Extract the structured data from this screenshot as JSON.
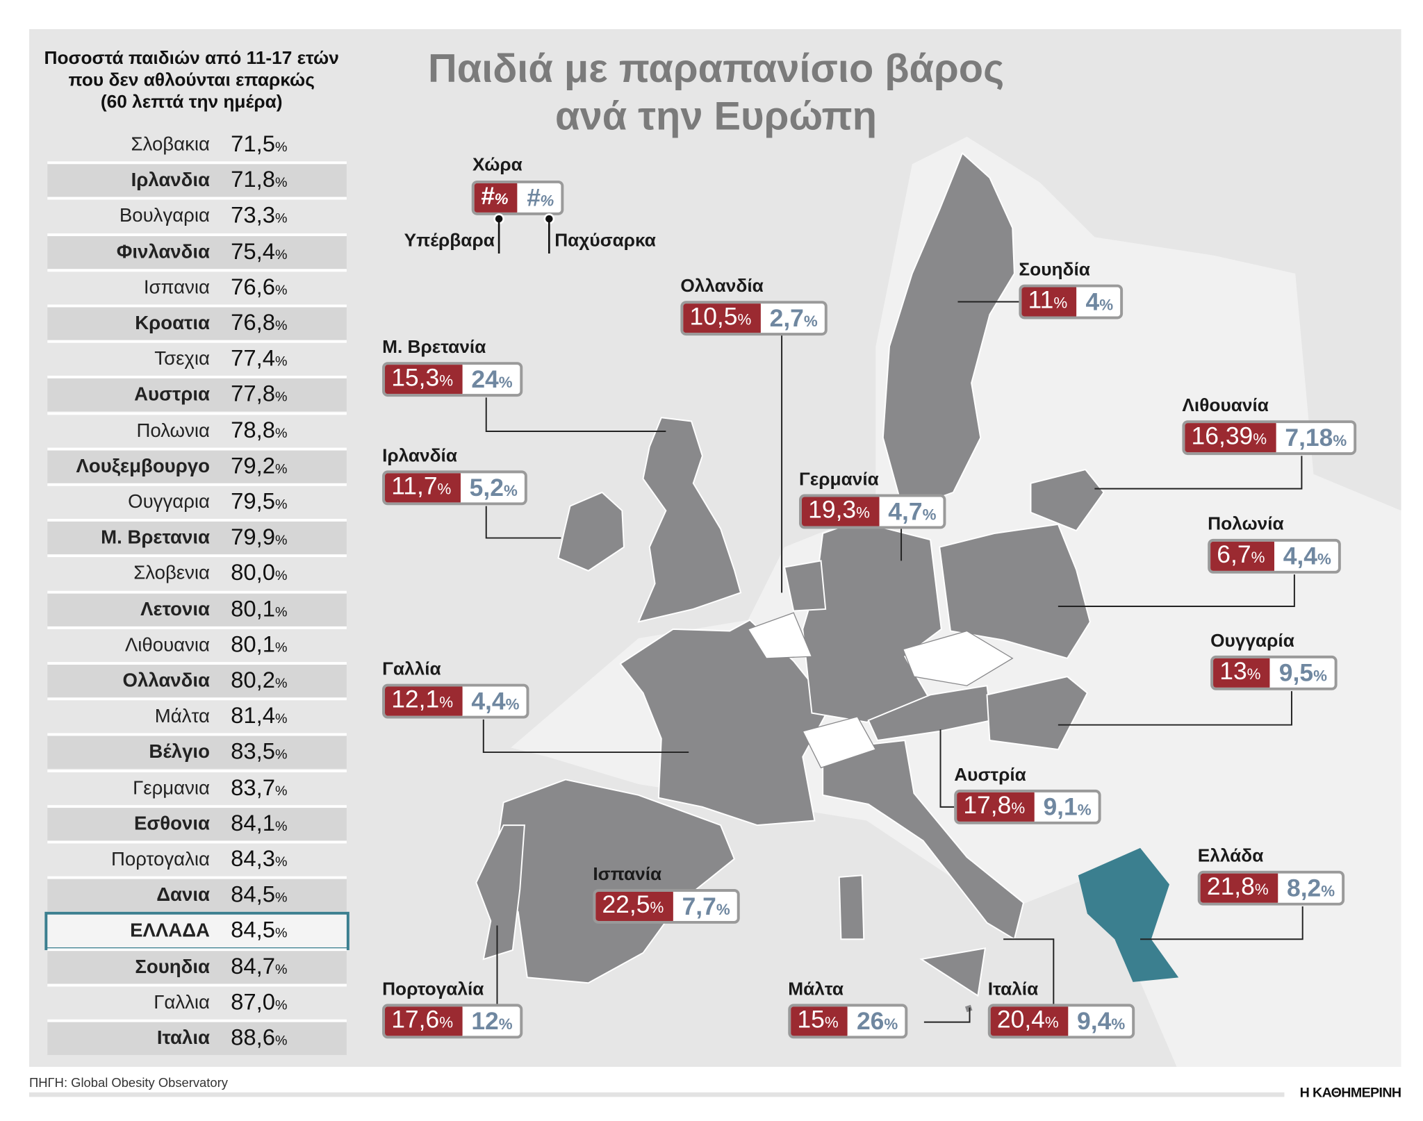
{
  "title": {
    "line1": "Παιδιά με παραπανίσιο βάρος",
    "line2": "ανά την Ευρώπη"
  },
  "table": {
    "heading": [
      "Ποσοστά παιδιών από 11-17 ετών",
      "που δεν αθλούνται επαρκώς",
      "(60 λεπτά την ημέρα)"
    ],
    "unit": "%",
    "highlight_color": "#3b7f8f",
    "rows": [
      {
        "country": "Σλοβακια",
        "value": "71,5"
      },
      {
        "country": "Ιρλανδια",
        "value": "71,8"
      },
      {
        "country": "Βουλγαρια",
        "value": "73,3"
      },
      {
        "country": "Φινλανδια",
        "value": "75,4"
      },
      {
        "country": "Ισπανια",
        "value": "76,6"
      },
      {
        "country": "Κροατια",
        "value": "76,8"
      },
      {
        "country": "Τσεχια",
        "value": "77,4"
      },
      {
        "country": "Αυστρια",
        "value": "77,8"
      },
      {
        "country": "Πολωνια",
        "value": "78,8"
      },
      {
        "country": "Λουξεμβουργο",
        "value": "79,2"
      },
      {
        "country": "Ουγγαρια",
        "value": "79,5"
      },
      {
        "country": "Μ. Βρετανια",
        "value": "79,9"
      },
      {
        "country": "Σλοβενια",
        "value": "80,0"
      },
      {
        "country": "Λετονια",
        "value": "80,1"
      },
      {
        "country": "Λιθουανια",
        "value": "80,1"
      },
      {
        "country": "Ολλανδια",
        "value": "80,2"
      },
      {
        "country": "Μάλτα",
        "value": "81,4"
      },
      {
        "country": "Βέλγιο",
        "value": "83,5"
      },
      {
        "country": "Γερμανια",
        "value": "83,7"
      },
      {
        "country": "Εσθονια",
        "value": "84,1"
      },
      {
        "country": "Πορτογαλια",
        "value": "84,3"
      },
      {
        "country": "Δανια",
        "value": "84,5"
      },
      {
        "country": "ΕΛΛΑΔΑ",
        "value": "84,5",
        "highlighted": true
      },
      {
        "country": "Σουηδια",
        "value": "84,7"
      },
      {
        "country": "Γαλλια",
        "value": "87,0"
      },
      {
        "country": "Ιταλια",
        "value": "88,6"
      }
    ]
  },
  "legend": {
    "country_label": "Χώρα",
    "under_placeholder": "#",
    "over_placeholder": "#",
    "unit": "%",
    "underweight_label": "Υπέρβαρα",
    "obese_label": "Παχύσαρκα"
  },
  "colors": {
    "overweight": "#9b2a31",
    "obese": "#6f87a0",
    "map_land": "#89898b",
    "greece": "#3b7f8f",
    "background": "#e6e6e6"
  },
  "callouts": [
    {
      "country": "Ολλανδία",
      "overweight": "10,5",
      "obese": "2,7"
    },
    {
      "country": "Σουηδία",
      "overweight": "11",
      "obese": "4"
    },
    {
      "country": "Μ. Βρετανία",
      "overweight": "15,3",
      "obese": "24"
    },
    {
      "country": "Λιθουανία",
      "overweight": "16,39",
      "obese": "7,18"
    },
    {
      "country": "Ιρλανδία",
      "overweight": "11,7",
      "obese": "5,2"
    },
    {
      "country": "Γερμανία",
      "overweight": "19,3",
      "obese": "4,7"
    },
    {
      "country": "Πολωνία",
      "overweight": "6,7",
      "obese": "4,4"
    },
    {
      "country": "Ουγγαρία",
      "overweight": "13",
      "obese": "9,5"
    },
    {
      "country": "Γαλλία",
      "overweight": "12,1",
      "obese": "4,4"
    },
    {
      "country": "Αυστρία",
      "overweight": "17,8",
      "obese": "9,1"
    },
    {
      "country": "Ελλάδα",
      "overweight": "21,8",
      "obese": "8,2"
    },
    {
      "country": "Ισπανία",
      "overweight": "22,5",
      "obese": "7,7"
    },
    {
      "country": "Πορτογαλία",
      "overweight": "17,6",
      "obese": "12"
    },
    {
      "country": "Μάλτα",
      "overweight": "15",
      "obese": "26"
    },
    {
      "country": "Ιταλία",
      "overweight": "20,4",
      "obese": "9,4"
    }
  ],
  "footer": {
    "source": "ΠΗΓΗ: Global Obesity Observatory",
    "logo": "Η ΚΑΘΗΜΕΡΙΝΗ"
  }
}
